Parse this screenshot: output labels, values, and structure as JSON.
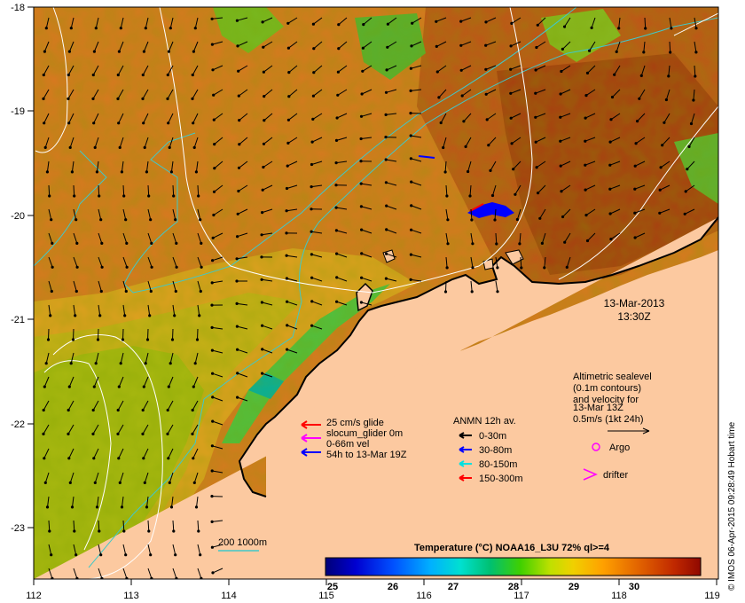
{
  "map": {
    "x_ticks": [
      "112",
      "113",
      "114",
      "115",
      "116",
      "117",
      "118",
      "119"
    ],
    "y_ticks": [
      "-18",
      "-19",
      "-20",
      "-21",
      "-22",
      "-23"
    ],
    "date_line1": "13-Mar-2013",
    "date_line2": "13:30Z",
    "credit": "© IMOS 06-Apr-2015 09:28:49 Hobart time",
    "colors": {
      "land": "#fcc9a0",
      "isobath": "#40c8c8",
      "sealevel_contour": "#ffffff"
    }
  },
  "glider_legend": {
    "line1": "25 cm/s glide",
    "line2": "slocum_glider 0m",
    "line3": "0-66m vel",
    "line4": "54h to 13-Mar 19Z"
  },
  "anmn_legend": {
    "title": "ANMN 12h av.",
    "items": [
      {
        "label": "0-30m",
        "color": "#000000"
      },
      {
        "label": "30-80m",
        "color": "#0000ff"
      },
      {
        "label": "80-150m",
        "color": "#00e0e0"
      },
      {
        "label": "150-300m",
        "color": "#ff0000"
      }
    ]
  },
  "sealevel_legend": {
    "line1": "Altimetric sealevel",
    "line2": "(0.1m contours)",
    "line3": "and velocity for",
    "line4": "13-Mar 13Z",
    "line5": "0.5m/s (1kt 24h)"
  },
  "platform_legend": {
    "argo": "Argo",
    "drifter": "drifter"
  },
  "isobath_legend": {
    "label": "200  1000m"
  },
  "colorbar": {
    "title": "Temperature (°C) NOAA16_L3U 72% ql>=4",
    "ticks": [
      "25",
      "26",
      "27",
      "28",
      "29",
      "30"
    ],
    "colors": [
      "#000080",
      "#0000ff",
      "#00a0ff",
      "#00e0e0",
      "#00c060",
      "#60d000",
      "#e0e000",
      "#ffa000",
      "#e06000",
      "#a01000"
    ]
  }
}
